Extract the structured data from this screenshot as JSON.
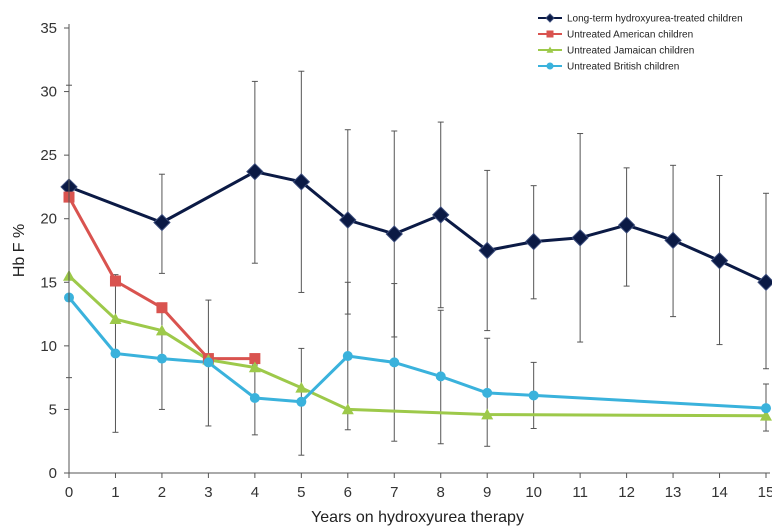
{
  "chart_data": {
    "type": "line",
    "xlabel": "Years on hydroxyurea therapy",
    "ylabel": "Hb F %",
    "xlim": [
      0,
      15
    ],
    "ylim": [
      0,
      35
    ],
    "x_ticks": [
      0,
      1,
      2,
      3,
      4,
      5,
      6,
      7,
      8,
      9,
      10,
      11,
      12,
      13,
      14,
      15
    ],
    "y_ticks": [
      0,
      5,
      10,
      15,
      20,
      25,
      30,
      35
    ],
    "grid": false,
    "legend_position": "top-right",
    "series": [
      {
        "name": "Long-term hydroxyurea-treated children",
        "color": "#0b1a45",
        "marker": "diamond",
        "x": [
          0,
          2,
          4,
          5,
          6,
          7,
          8,
          9,
          10,
          11,
          12,
          13,
          14,
          15
        ],
        "y": [
          22.5,
          19.7,
          23.7,
          22.9,
          19.9,
          18.8,
          20.3,
          17.5,
          18.2,
          18.5,
          19.5,
          18.3,
          16.7,
          15.0
        ],
        "error_low": [
          7.5,
          15.7,
          16.5,
          14.2,
          12.5,
          10.7,
          13.0,
          11.2,
          13.7,
          10.3,
          14.7,
          12.3,
          10.1,
          8.2
        ],
        "error_high": [
          30.5,
          23.5,
          30.8,
          31.6,
          27.0,
          26.9,
          27.6,
          23.8,
          22.6,
          26.7,
          24.0,
          24.2,
          23.4,
          22.0
        ]
      },
      {
        "name": "Untreated American children",
        "color": "#d9534f",
        "marker": "square",
        "x": [
          0,
          1,
          2,
          3,
          4
        ],
        "y": [
          21.7,
          15.1,
          13.0,
          9.0,
          9.0
        ]
      },
      {
        "name": "Untreated Jamaican children",
        "color": "#9dc94a",
        "marker": "triangle",
        "x": [
          0,
          1,
          2,
          3,
          4,
          5,
          6,
          9,
          15
        ],
        "y": [
          15.5,
          12.1,
          11.2,
          8.9,
          8.3,
          6.7,
          5.0,
          4.6,
          4.5
        ]
      },
      {
        "name": "Untreated British children",
        "color": "#3ab2dc",
        "marker": "circle",
        "x": [
          0,
          1,
          2,
          3,
          4,
          5,
          6,
          7,
          8,
          9,
          10,
          15
        ],
        "y": [
          13.8,
          9.4,
          9.0,
          8.7,
          5.9,
          5.6,
          9.2,
          8.7,
          7.6,
          6.3,
          6.1,
          5.1
        ],
        "error_low": [
          null,
          3.2,
          5.0,
          3.7,
          3.0,
          1.4,
          3.4,
          2.5,
          2.3,
          2.1,
          3.5,
          3.3
        ],
        "error_high": [
          null,
          15.6,
          13.2,
          13.6,
          8.5,
          9.8,
          15.0,
          14.9,
          12.8,
          10.6,
          8.7,
          7.0
        ]
      }
    ]
  }
}
